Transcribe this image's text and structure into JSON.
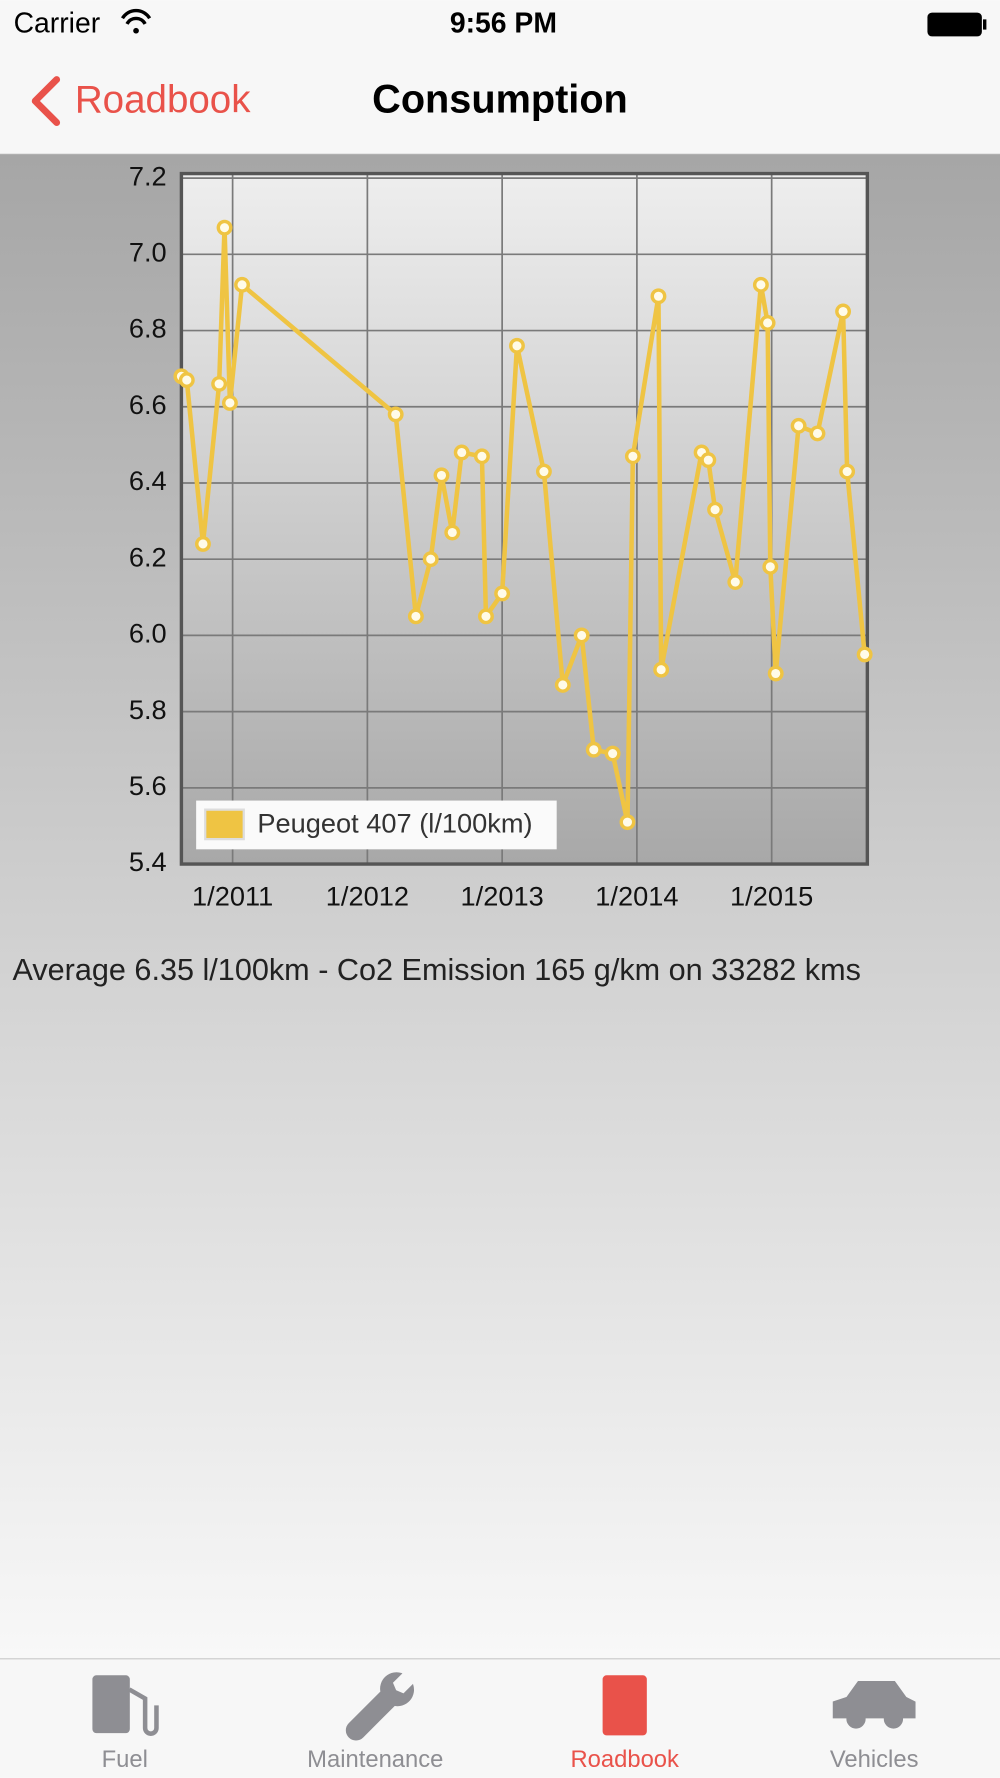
{
  "status_bar": {
    "carrier": "Carrier",
    "time": "9:56 PM"
  },
  "nav": {
    "back": "Roadbook",
    "title": "Consumption"
  },
  "chart_data": {
    "type": "line",
    "x": [
      2010.62,
      2010.66,
      2010.78,
      2010.9,
      2010.94,
      2010.98,
      2011.07,
      2012.21,
      2012.36,
      2012.47,
      2012.55,
      2012.63,
      2012.7,
      2012.85,
      2012.88,
      2013.0,
      2013.11,
      2013.31,
      2013.45,
      2013.59,
      2013.68,
      2013.82,
      2013.93,
      2013.97,
      2014.16,
      2014.18,
      2014.48,
      2014.53,
      2014.58,
      2014.73,
      2014.92,
      2014.97,
      2014.99,
      2015.03,
      2015.2,
      2015.34,
      2015.53,
      2015.56,
      2015.69
    ],
    "series": [
      {
        "name": "Peugeot 407 (l/100km)",
        "color": "#efc443",
        "values": [
          6.68,
          6.67,
          6.24,
          6.66,
          7.07,
          6.61,
          6.92,
          6.58,
          6.05,
          6.2,
          6.42,
          6.27,
          6.48,
          6.47,
          6.05,
          6.11,
          6.76,
          6.43,
          5.87,
          6.0,
          5.7,
          5.69,
          5.51,
          6.47,
          6.89,
          5.91,
          6.48,
          6.46,
          6.33,
          6.14,
          6.92,
          6.82,
          6.18,
          5.9,
          6.55,
          6.53,
          6.85,
          6.43,
          5.95
        ]
      }
    ],
    "xlim": [
      2010.62,
      2015.71
    ],
    "xticks": [
      {
        "value": 2011,
        "label": "1/2011"
      },
      {
        "value": 2012,
        "label": "1/2012"
      },
      {
        "value": 2013,
        "label": "1/2013"
      },
      {
        "value": 2014,
        "label": "1/2014"
      },
      {
        "value": 2015,
        "label": "1/2015"
      }
    ],
    "ylim": [
      5.4,
      7.2
    ],
    "yticks": [
      5.4,
      5.6,
      5.8,
      {
        "value": 6,
        "label": "6.0"
      },
      6.2,
      6.4,
      6.6,
      6.8,
      {
        "value": 7,
        "label": "7.0"
      },
      7.2
    ],
    "grid": true,
    "legend": "lower-left"
  },
  "summary": "Average 6.35 l/100km - Co2 Emission 165 g/km on 33282 kms",
  "tab_bar": {
    "tabs": [
      "Fuel",
      "Maintenance",
      "Roadbook",
      "Vehicles"
    ],
    "selected": 2
  }
}
